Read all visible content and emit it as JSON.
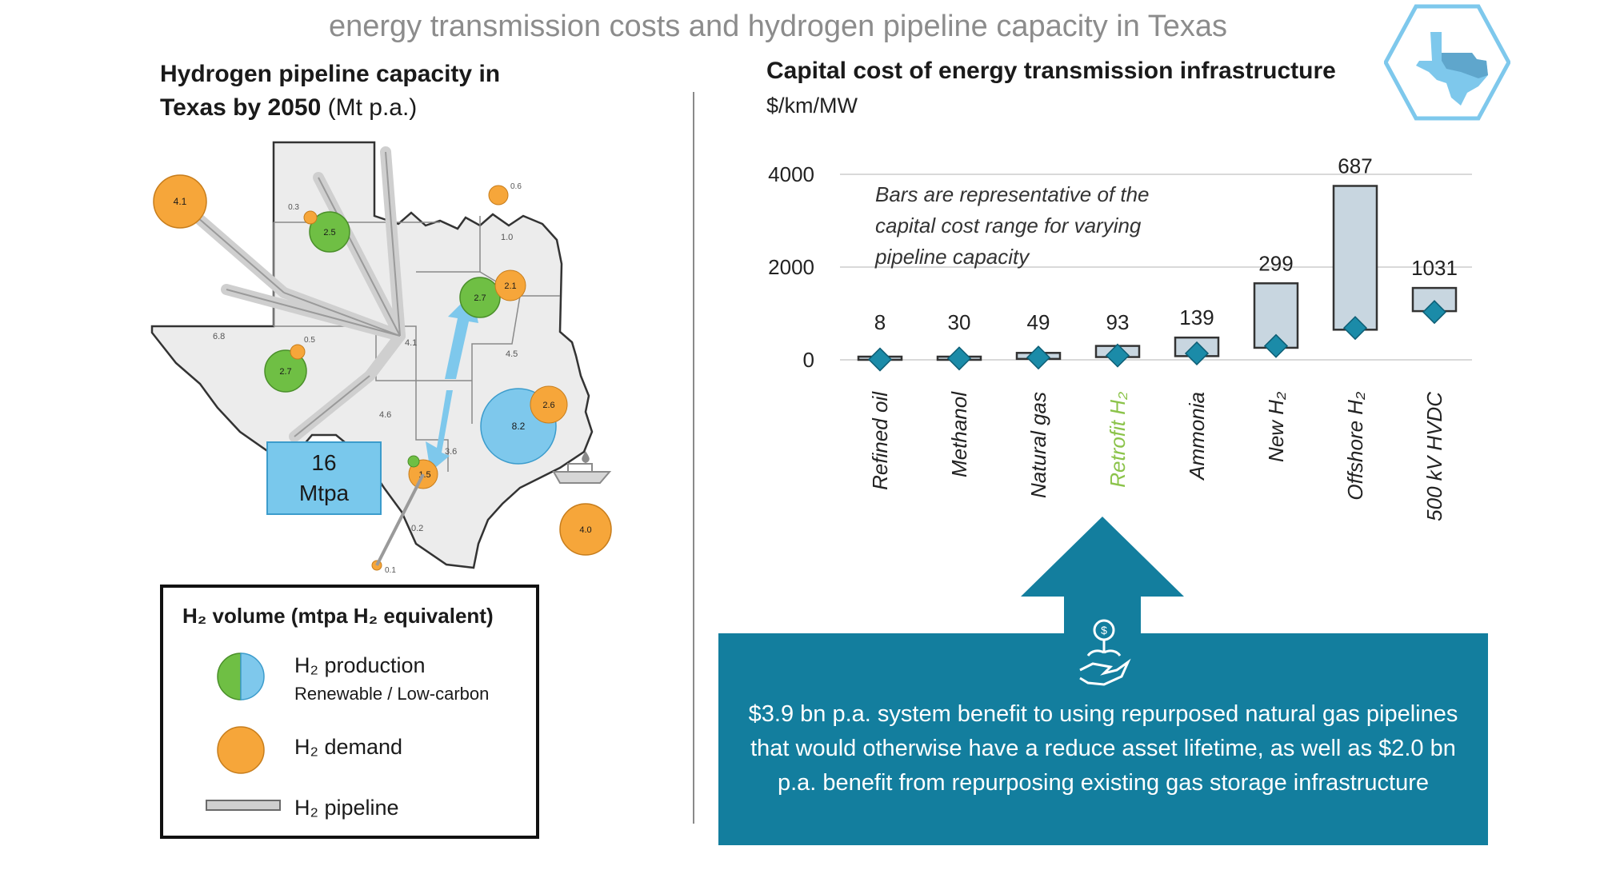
{
  "title": "energy transmission costs and hydrogen pipeline capacity in Texas",
  "left_panel": {
    "title_line1": "Hydrogen pipeline capacity in",
    "title_line2_bold": "Texas by 2050",
    "title_unit": "(Mt p.a.)",
    "callout_value": "16",
    "callout_unit": "Mtpa",
    "production_nodes": [
      "2.5",
      "2.7",
      "2.7",
      "8.2"
    ],
    "demand_nodes": [
      "4.1",
      "0.3",
      "0.6",
      "2.1",
      "0.5",
      "2.6",
      "1.5",
      "0.1",
      "4.0"
    ],
    "pipeline_labels": [
      "1.0",
      "6.8",
      "4.1",
      "4.5",
      "4.6",
      "3.6",
      "0.2"
    ],
    "legend": {
      "title": "H₂ volume (mtpa H₂ equivalent)",
      "production": "H₂ production",
      "production_sub": "Renewable / Low-carbon",
      "demand": "H₂ demand",
      "pipeline": "H₂ pipeline"
    }
  },
  "right_panel": {
    "title": "Capital cost of energy transmission infrastructure",
    "subtitle": "$/km/MW",
    "note_line1": "Bars are representative of the",
    "note_line2": "capital cost range for varying",
    "note_line3": "pipeline capacity"
  },
  "chart_data": {
    "type": "bar",
    "title": "Capital cost of energy transmission infrastructure",
    "ylabel": "$/km/MW",
    "ylim": [
      0,
      4000
    ],
    "yticks": [
      0,
      2000,
      4000
    ],
    "grid": true,
    "categories": [
      "Refined oil",
      "Methanol",
      "Natural gas",
      "Retrofit H₂",
      "Ammonia",
      "New H₂",
      "Offshore H₂",
      "500 kV HVDC"
    ],
    "highlight_category": "Retrofit H₂",
    "series": [
      {
        "name": "range_low",
        "values": [
          0,
          0,
          20,
          60,
          80,
          260,
          650,
          1050
        ]
      },
      {
        "name": "range_high",
        "values": [
          40,
          60,
          150,
          300,
          480,
          1650,
          3750,
          1550
        ]
      },
      {
        "name": "point",
        "values": [
          8,
          30,
          49,
          93,
          139,
          299,
          687,
          1031
        ]
      }
    ],
    "data_labels": [
      "8",
      "30",
      "49",
      "93",
      "139",
      "299",
      "687",
      "1031"
    ],
    "colors": {
      "bar_fill": "#c8d6e0",
      "bar_stroke": "#333333",
      "marker": "#1b8ba8",
      "highlight_label": "#8bc34a",
      "grid": "#d9d9d9"
    }
  },
  "benefit": {
    "text": "$3.9 bn p.a. system benefit to using repurposed natural gas pipelines that would otherwise have a reduce asset lifetime, as well as $2.0 bn p.a. benefit from repurposing existing gas storage infrastructure",
    "color": "#137e9e"
  },
  "colors": {
    "production_green": "#6fbf44",
    "production_blue": "#7ec8ec",
    "demand_orange": "#f6a63a",
    "pipeline_gray": "#c9c9c9",
    "teal": "#137e9e",
    "logo_blue": "#7ec8ec"
  },
  "icons": [
    "texas-logo-icon",
    "ship-icon",
    "hand-coin-icon"
  ]
}
